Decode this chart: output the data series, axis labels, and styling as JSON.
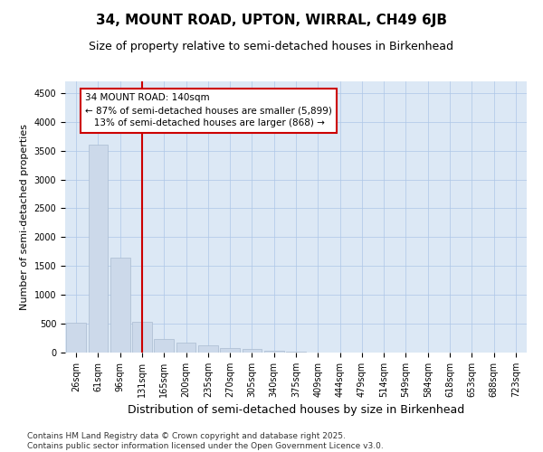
{
  "title": "34, MOUNT ROAD, UPTON, WIRRAL, CH49 6JB",
  "subtitle": "Size of property relative to semi-detached houses in Birkenhead",
  "xlabel": "Distribution of semi-detached houses by size in Birkenhead",
  "ylabel": "Number of semi-detached properties",
  "bar_color": "#ccd9ea",
  "bar_edge_color": "#aabbd0",
  "grid_color": "#aec6e8",
  "bg_color": "#dce8f5",
  "categories": [
    "26sqm",
    "61sqm",
    "96sqm",
    "131sqm",
    "165sqm",
    "200sqm",
    "235sqm",
    "270sqm",
    "305sqm",
    "340sqm",
    "375sqm",
    "409sqm",
    "444sqm",
    "479sqm",
    "514sqm",
    "549sqm",
    "584sqm",
    "618sqm",
    "653sqm",
    "688sqm",
    "723sqm"
  ],
  "values": [
    510,
    3600,
    1650,
    540,
    235,
    170,
    130,
    85,
    55,
    35,
    20,
    0,
    0,
    0,
    0,
    0,
    0,
    0,
    0,
    0,
    0
  ],
  "property_line_x": 3.0,
  "property_line_color": "#cc0000",
  "annotation_line1": "34 MOUNT ROAD: 140sqm",
  "annotation_line2": "← 87% of semi-detached houses are smaller (5,899)",
  "annotation_line3": "   13% of semi-detached houses are larger (868) →",
  "ylim": [
    0,
    4700
  ],
  "yticks": [
    0,
    500,
    1000,
    1500,
    2000,
    2500,
    3000,
    3500,
    4000,
    4500
  ],
  "footer": "Contains HM Land Registry data © Crown copyright and database right 2025.\nContains public sector information licensed under the Open Government Licence v3.0.",
  "title_fontsize": 11,
  "subtitle_fontsize": 9,
  "annotation_fontsize": 7.5,
  "footer_fontsize": 6.5,
  "tick_fontsize": 7,
  "ylabel_fontsize": 8,
  "xlabel_fontsize": 9
}
